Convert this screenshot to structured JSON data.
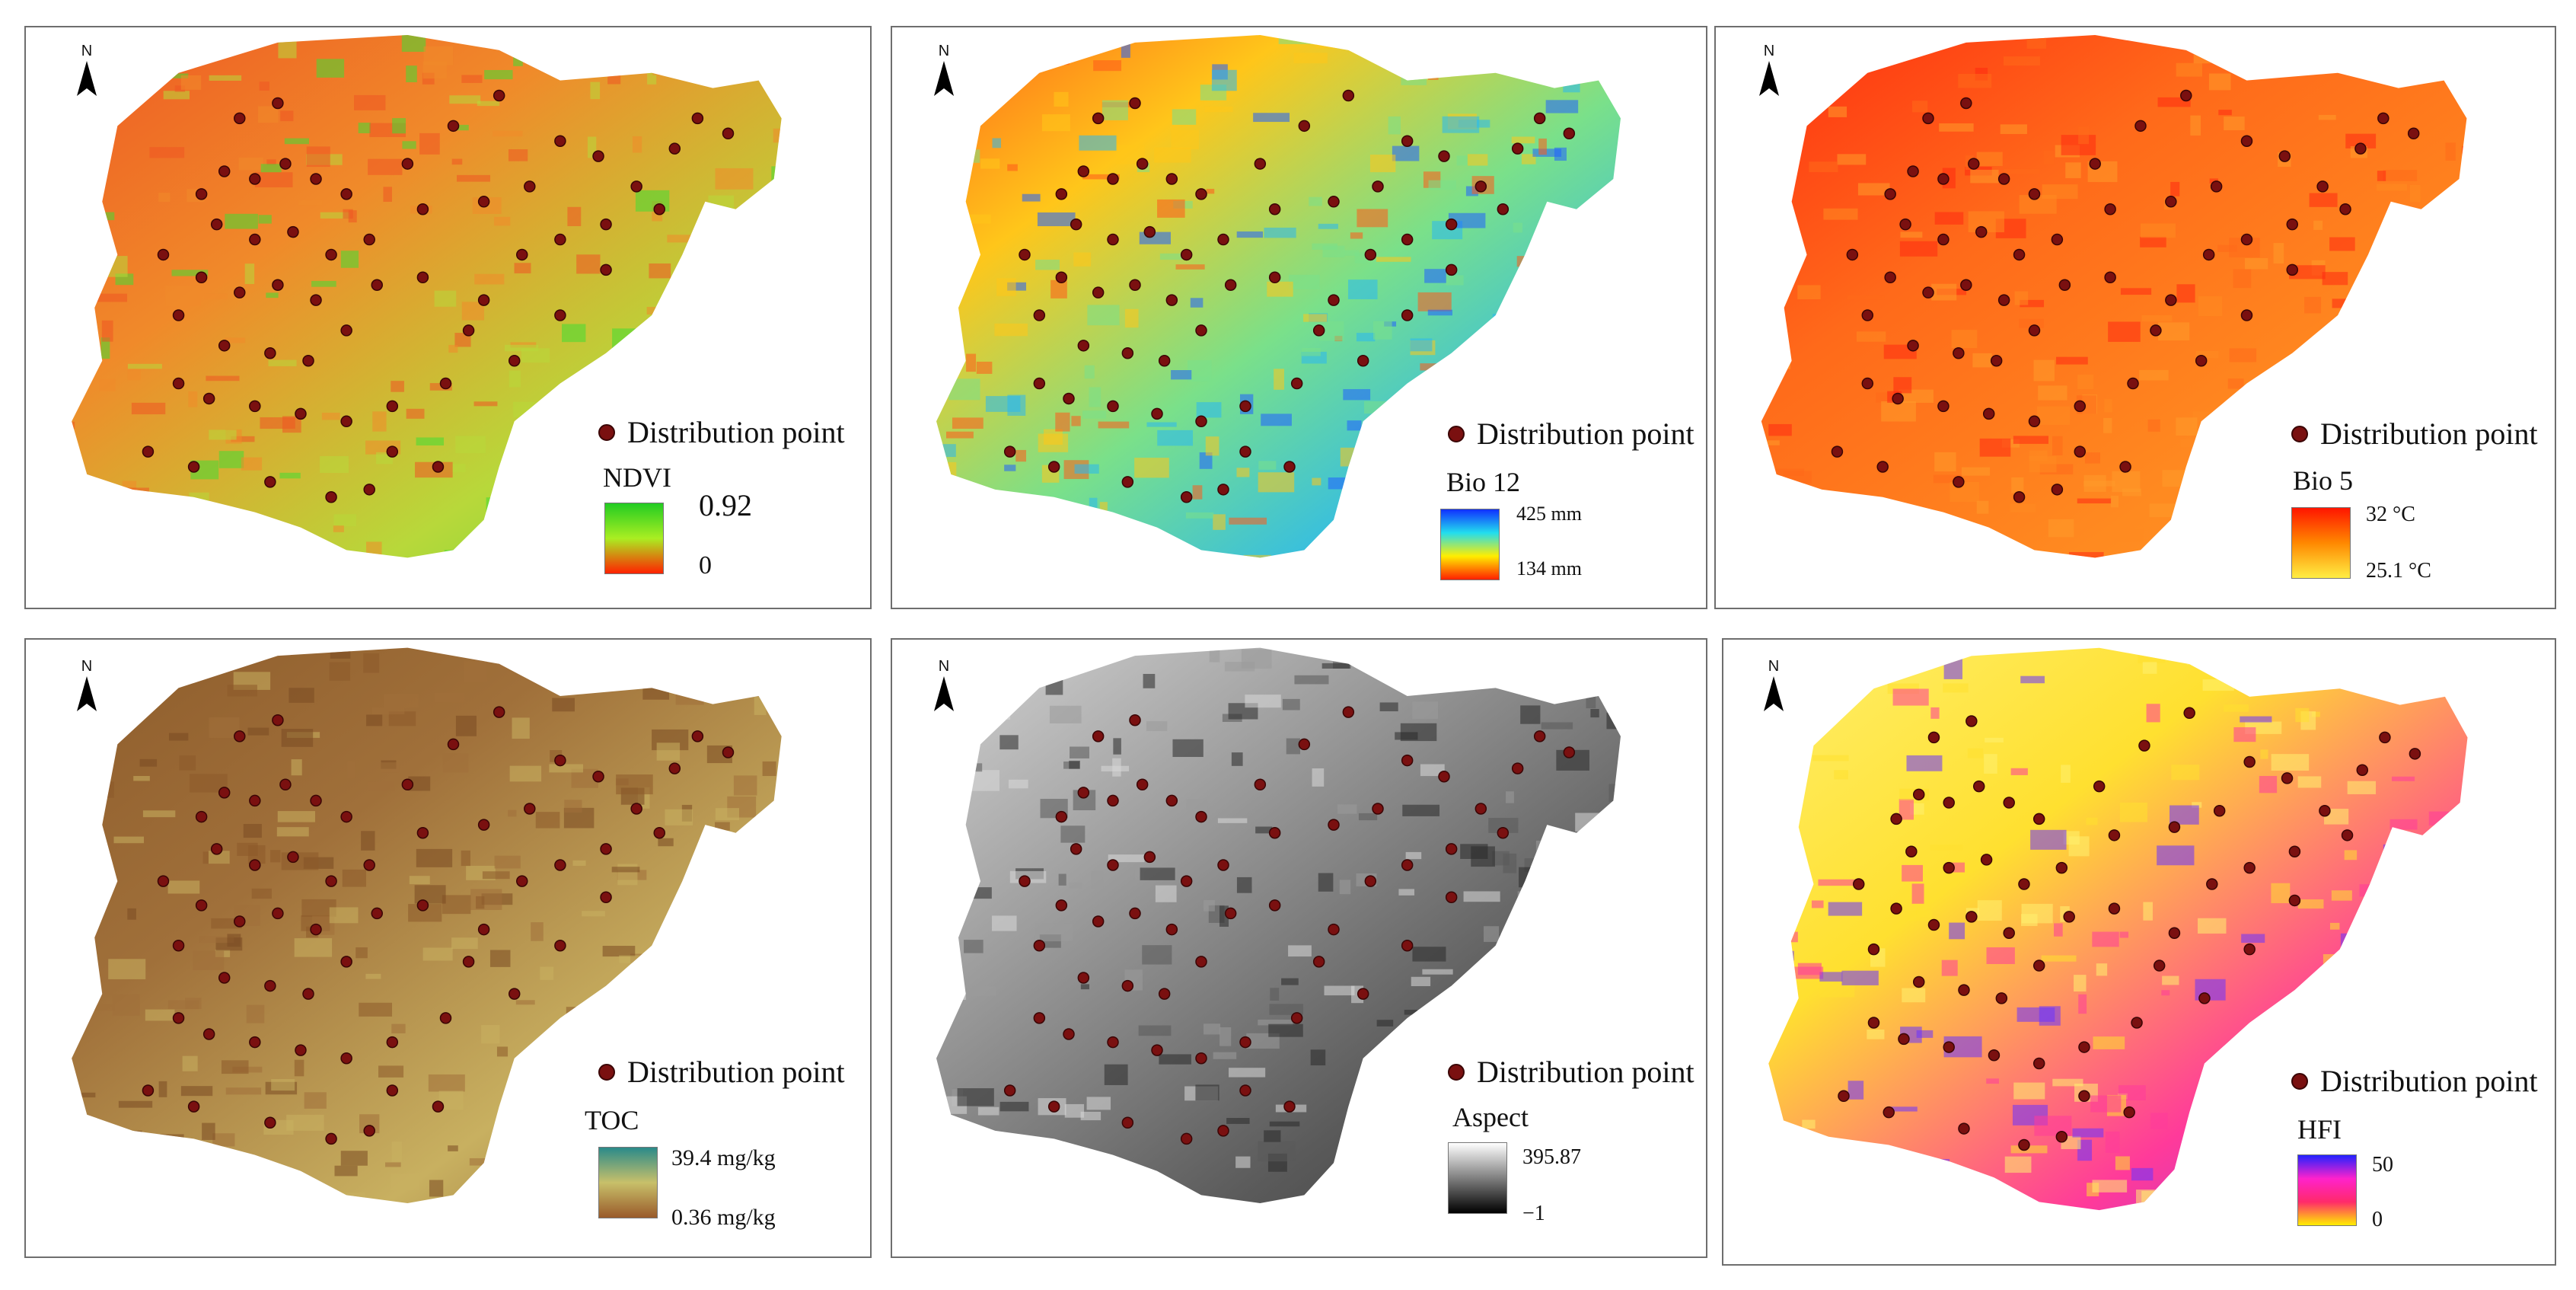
{
  "common": {
    "north_label": "N",
    "distribution_label": "Distribution point",
    "point_color": "#7a1010"
  },
  "panels": [
    {
      "title": "NDVI",
      "max_label": "0.92",
      "min_label": "0",
      "ramp_colors": [
        "#22cc22",
        "#aaee22",
        "#ff2200"
      ],
      "map_colors": [
        "#ee5522",
        "#f08a2a",
        "#b8d83a",
        "#44dd33"
      ]
    },
    {
      "title": "Bio 12",
      "max_label": "425 mm",
      "min_label": "134 mm",
      "ramp_colors": [
        "#1030ff",
        "#22ddee",
        "#ffee00",
        "#ff2000"
      ],
      "map_colors": [
        "#ff5a1a",
        "#ffc61a",
        "#7ae08a",
        "#2ab8f0",
        "#2060ff"
      ]
    },
    {
      "title": "Bio 5",
      "max_label": "32 °C",
      "min_label": "25.1 °C",
      "ramp_colors": [
        "#ff1500",
        "#ff8800",
        "#ffee44"
      ],
      "map_colors": [
        "#ff2a10",
        "#ff6a1a",
        "#ff8a20",
        "#ff9a2a"
      ]
    },
    {
      "title": "TOC",
      "max_label": "39.4 mg/kg",
      "min_label": "0.36 mg/kg",
      "ramp_colors": [
        "#2a8a8a",
        "#c8c06a",
        "#9a5a2a"
      ],
      "map_colors": [
        "#8c5a2a",
        "#a0703a",
        "#c8b060",
        "#7a4a22"
      ]
    },
    {
      "title": "Aspect",
      "max_label": "395.87",
      "min_label": "−1",
      "ramp_colors": [
        "#ffffff",
        "#000000"
      ],
      "map_colors": [
        "#d8d8d8",
        "#9a9a9a",
        "#5a5a5a",
        "#2a2a2a"
      ]
    },
    {
      "title": "HFI",
      "max_label": "50",
      "min_label": "0",
      "ramp_colors": [
        "#2222ff",
        "#ff22cc",
        "#ff2a6a",
        "#ffee00"
      ],
      "map_colors": [
        "#fff070",
        "#ffe030",
        "#ff3a9a",
        "#6a33ff"
      ]
    }
  ]
}
